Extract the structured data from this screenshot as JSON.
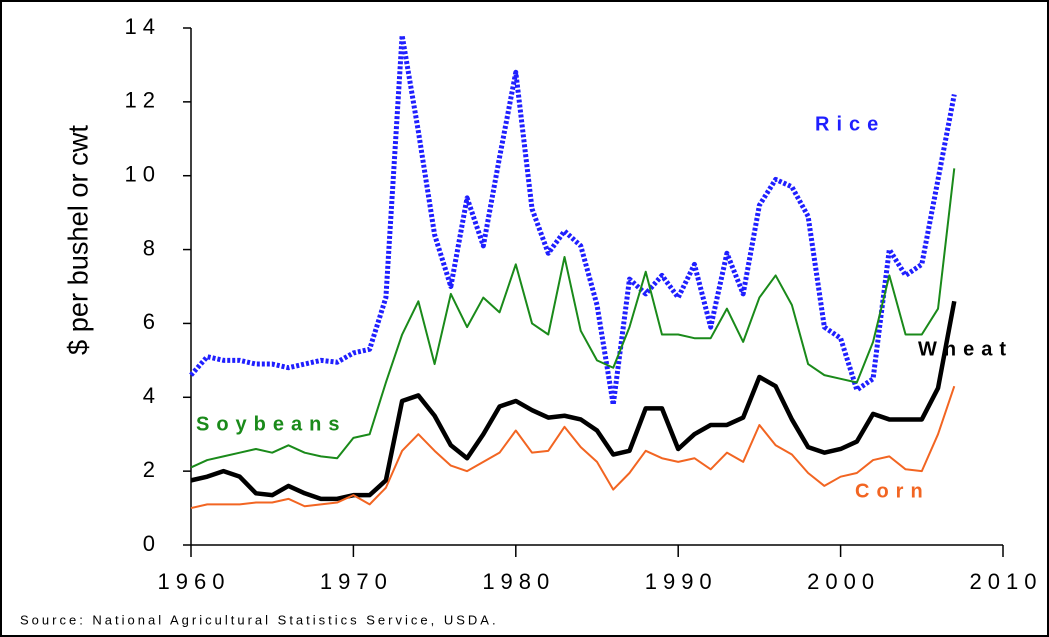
{
  "chart_data": {
    "type": "line",
    "y_label": "$ per bushel or cwt",
    "source": "Source: National Agricultural Statistics Service, USDA.",
    "x": [
      1960,
      1961,
      1962,
      1963,
      1964,
      1965,
      1966,
      1967,
      1968,
      1969,
      1970,
      1971,
      1972,
      1973,
      1974,
      1975,
      1976,
      1977,
      1978,
      1979,
      1980,
      1981,
      1982,
      1983,
      1984,
      1985,
      1986,
      1987,
      1988,
      1989,
      1990,
      1991,
      1992,
      1993,
      1994,
      1995,
      1996,
      1997,
      1998,
      1999,
      2000,
      2001,
      2002,
      2003,
      2004,
      2005,
      2006,
      2007
    ],
    "xlim": [
      1960,
      2010
    ],
    "xticks": [
      1960,
      1970,
      1980,
      1990,
      2000,
      2010
    ],
    "ylim": [
      0,
      14
    ],
    "yticks": [
      0,
      2,
      4,
      6,
      8,
      10,
      12,
      14
    ],
    "series": [
      {
        "name": "Rice",
        "color": "#1f1fff",
        "values": [
          4.6,
          5.1,
          5.0,
          5.0,
          4.9,
          4.9,
          4.8,
          4.9,
          5.0,
          4.95,
          5.2,
          5.3,
          6.7,
          13.8,
          11.2,
          8.4,
          7.0,
          9.4,
          8.1,
          10.5,
          12.8,
          9.1,
          7.9,
          8.5,
          8.1,
          6.5,
          3.8,
          7.2,
          6.8,
          7.3,
          6.7,
          7.6,
          5.9,
          7.9,
          6.8,
          9.2,
          9.9,
          9.7,
          8.9,
          5.9,
          5.6,
          4.2,
          4.5,
          8.0,
          7.3,
          7.6,
          9.9,
          12.2
        ]
      },
      {
        "name": "Soybeans",
        "color": "#1a8a1a",
        "values": [
          2.1,
          2.3,
          2.4,
          2.5,
          2.6,
          2.5,
          2.7,
          2.5,
          2.4,
          2.35,
          2.9,
          3.0,
          4.4,
          5.7,
          6.6,
          4.9,
          6.8,
          5.9,
          6.7,
          6.3,
          7.6,
          6.0,
          5.7,
          7.8,
          5.8,
          5.0,
          4.8,
          5.9,
          7.4,
          5.7,
          5.7,
          5.6,
          5.6,
          6.4,
          5.5,
          6.7,
          7.3,
          6.5,
          4.9,
          4.6,
          4.5,
          4.4,
          5.5,
          7.3,
          5.7,
          5.7,
          6.4,
          10.2
        ]
      },
      {
        "name": "Wheat",
        "color": "#000000",
        "values": [
          1.75,
          1.85,
          2.0,
          1.85,
          1.4,
          1.35,
          1.6,
          1.4,
          1.25,
          1.25,
          1.35,
          1.35,
          1.75,
          3.9,
          4.05,
          3.5,
          2.7,
          2.35,
          3.0,
          3.75,
          3.9,
          3.65,
          3.45,
          3.5,
          3.4,
          3.1,
          2.45,
          2.55,
          3.7,
          3.7,
          2.6,
          3.0,
          3.25,
          3.25,
          3.45,
          4.55,
          4.3,
          3.4,
          2.65,
          2.5,
          2.6,
          2.8,
          3.55,
          3.4,
          3.4,
          3.4,
          4.25,
          6.6
        ]
      },
      {
        "name": "Corn",
        "color": "#f26522",
        "values": [
          1.0,
          1.1,
          1.1,
          1.1,
          1.15,
          1.15,
          1.25,
          1.05,
          1.1,
          1.15,
          1.35,
          1.1,
          1.55,
          2.55,
          3.0,
          2.55,
          2.15,
          2.0,
          2.25,
          2.5,
          3.1,
          2.5,
          2.55,
          3.2,
          2.65,
          2.25,
          1.5,
          1.95,
          2.55,
          2.35,
          2.25,
          2.35,
          2.05,
          2.5,
          2.25,
          3.25,
          2.7,
          2.45,
          1.95,
          1.6,
          1.85,
          1.95,
          2.3,
          2.4,
          2.05,
          2.0,
          3.0,
          4.3
        ]
      }
    ]
  }
}
